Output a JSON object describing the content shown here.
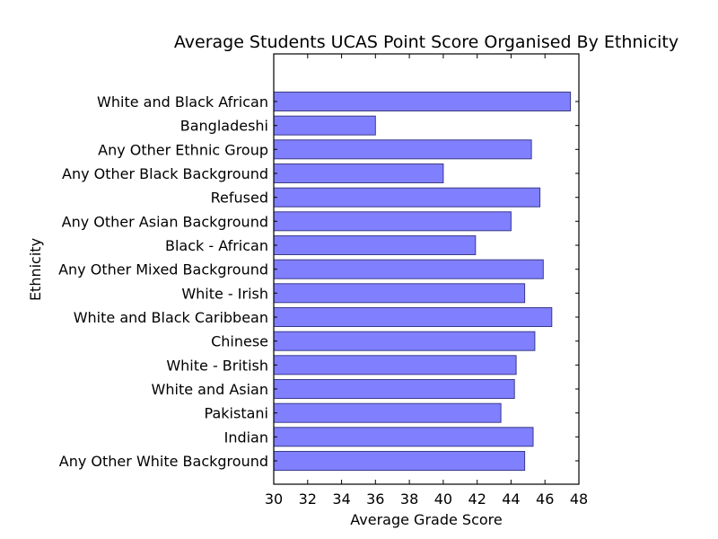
{
  "chart_data": {
    "type": "bar",
    "orientation": "horizontal",
    "title": "Average Students UCAS Point Score Organised By Ethnicity",
    "xlabel": "Average Grade Score",
    "ylabel": "Ethnicity",
    "xlim": [
      30,
      48
    ],
    "x_ticks": [
      30,
      32,
      34,
      36,
      38,
      40,
      42,
      44,
      46,
      48
    ],
    "grid": false,
    "bar_color": "#8080ff",
    "bar_edge_color": "#3a3a8a",
    "categories": [
      "White and Black African",
      "Bangladeshi",
      "Any Other Ethnic Group",
      "Any Other Black Background",
      "Refused",
      "Any Other Asian Background",
      "Black - African",
      "Any Other Mixed Background",
      "White - Irish",
      "White and Black Caribbean",
      "Chinese",
      "White - British",
      "White and Asian",
      "Pakistani",
      "Indian",
      "Any Other White Background"
    ],
    "values": [
      47.5,
      36.0,
      45.2,
      40.0,
      45.7,
      44.0,
      41.9,
      45.9,
      44.8,
      46.4,
      45.4,
      44.3,
      44.2,
      43.4,
      45.3,
      44.8
    ]
  }
}
